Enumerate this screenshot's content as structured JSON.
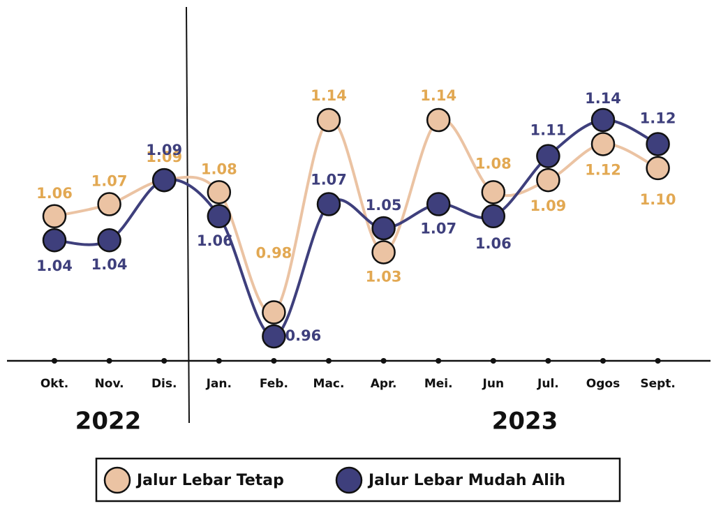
{
  "chart_data": {
    "type": "line",
    "categories": [
      "Okt.",
      "Nov.",
      "Dis.",
      "Jan.",
      "Feb.",
      "Mac.",
      "Apr.",
      "Mei.",
      "Jun",
      "Jul.",
      "Ogos",
      "Sept."
    ],
    "annotations": [
      "2022",
      "2023"
    ],
    "series": [
      {
        "name": "Jalur Lebar Tetap",
        "color": "#ebc3a3",
        "label_color": "#e2a852",
        "values": [
          1.06,
          1.07,
          1.09,
          1.08,
          0.98,
          1.14,
          1.03,
          1.14,
          1.08,
          1.09,
          1.12,
          1.1
        ],
        "value_labels": [
          "1.06",
          "1.07",
          "1.09",
          "1.08",
          "0.98",
          "1.14",
          "1.03",
          "1.14",
          "1.08",
          "1.09",
          "1.12",
          "1.10"
        ]
      },
      {
        "name": "Jalur Lebar Mudah Alih",
        "color": "#3e3f7c",
        "label_color": "#3e3f7c",
        "values": [
          1.04,
          1.04,
          1.09,
          1.06,
          0.96,
          1.07,
          1.05,
          1.07,
          1.06,
          1.11,
          1.14,
          1.12
        ],
        "value_labels": [
          "1.04",
          "1.04",
          "1.09",
          "1.06",
          "0.96",
          "1.07",
          "1.05",
          "1.07",
          "1.06",
          "1.11",
          "1.14",
          "1.12"
        ]
      }
    ]
  }
}
